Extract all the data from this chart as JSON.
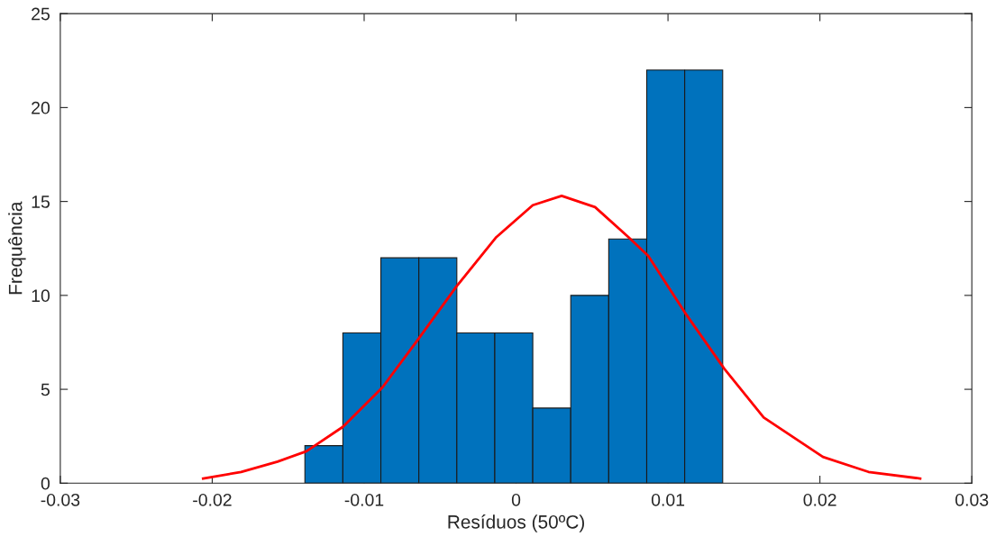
{
  "chart_data": {
    "type": "histogram",
    "xlabel": "Resíduos (50ºC)",
    "ylabel": "Frequência",
    "bins": [
      -0.0139,
      -0.0114,
      -0.0089,
      -0.0064,
      -0.0039,
      -0.0014,
      0.0011,
      0.0036,
      0.0061,
      0.0086,
      0.0111,
      0.0136
    ],
    "series": [
      {
        "color": "#0072bd",
        "values": [
          2,
          8,
          12,
          12,
          8,
          8,
          4,
          10,
          13,
          22,
          22
        ]
      },
      {
        "type": "line",
        "color": "#ff0000",
        "x": [
          -0.0206,
          -0.0181,
          -0.0157,
          -0.0138,
          -0.0114,
          -0.0088,
          -0.0065,
          -0.0039,
          -0.0013,
          0.0011,
          0.003,
          0.0052,
          0.0074,
          0.0087,
          0.0111,
          0.0137,
          0.0163,
          0.0202,
          0.0232,
          0.0266
        ],
        "values": [
          0.25,
          0.6,
          1.15,
          1.7,
          3.0,
          5.1,
          7.6,
          10.5,
          13.1,
          14.8,
          15.3,
          14.7,
          13.1,
          12.1,
          9.1,
          6.1,
          3.5,
          1.4,
          0.6,
          0.25
        ]
      }
    ],
    "xlim": [
      -0.03,
      0.03
    ],
    "xticks": [
      -0.03,
      -0.02,
      -0.01,
      0,
      0.01,
      0.02,
      0.03
    ],
    "ylim": [
      0,
      25
    ],
    "yticks": [
      0,
      5,
      10,
      15,
      20,
      25
    ],
    "grid": false,
    "legend": false
  }
}
